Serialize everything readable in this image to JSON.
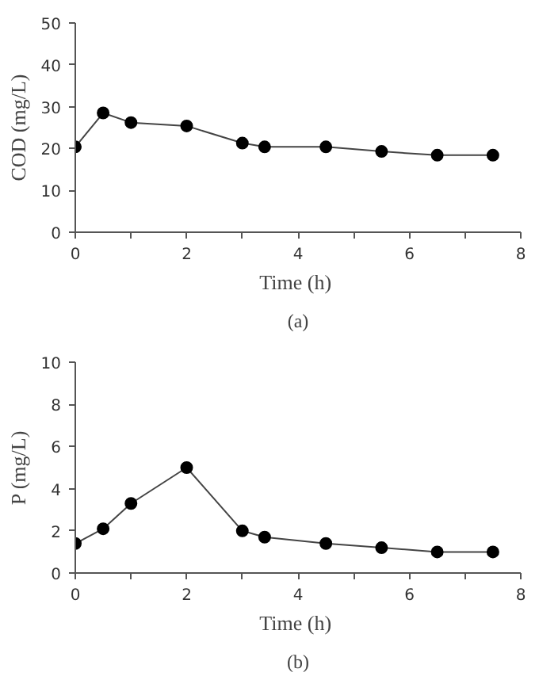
{
  "chart_data": [
    {
      "type": "line",
      "xlabel": "Time  (h)",
      "ylabel": "COD (mg/L)",
      "annotations": [
        "(a)"
      ],
      "x": [
        0,
        0.5,
        1,
        2,
        3,
        3.4,
        4.5,
        5.5,
        6.5,
        7.5
      ],
      "series": [
        {
          "color": "#000000",
          "values": [
            20.4,
            28.5,
            26.2,
            25.4,
            21.3,
            20.4,
            20.4,
            19.3,
            18.4,
            18.4
          ]
        }
      ],
      "xlim": [
        0,
        8
      ],
      "ylim": [
        0,
        50
      ],
      "xticks": [
        0,
        {
          "value": 1,
          "label": null
        },
        2,
        {
          "value": 3,
          "label": null
        },
        4,
        {
          "value": 5,
          "label": null
        },
        6,
        {
          "value": 7,
          "label": null
        },
        8
      ],
      "yticks": [
        0,
        10,
        20,
        30,
        40,
        50
      ],
      "grid": false,
      "marker": "circle",
      "line_style": "solid"
    },
    {
      "type": "line",
      "xlabel": "Time  (h)",
      "ylabel": "P (mg/L)",
      "annotations": [
        "(b)"
      ],
      "x": [
        0,
        0.5,
        1,
        2,
        3,
        3.4,
        4.5,
        5.5,
        6.5,
        7.5
      ],
      "series": [
        {
          "color": "#000000",
          "values": [
            1.4,
            2.1,
            3.3,
            5.0,
            2.0,
            1.7,
            1.4,
            1.2,
            1.0,
            1.0
          ]
        }
      ],
      "xlim": [
        0,
        8
      ],
      "ylim": [
        0,
        10
      ],
      "xticks": [
        0,
        {
          "value": 1,
          "label": null
        },
        2,
        {
          "value": 3,
          "label": null
        },
        4,
        {
          "value": 5,
          "label": null
        },
        6,
        {
          "value": 7,
          "label": null
        },
        8
      ],
      "yticks": [
        0,
        2,
        4,
        6,
        8,
        10
      ],
      "grid": false,
      "marker": "circle",
      "line_style": "solid"
    }
  ]
}
